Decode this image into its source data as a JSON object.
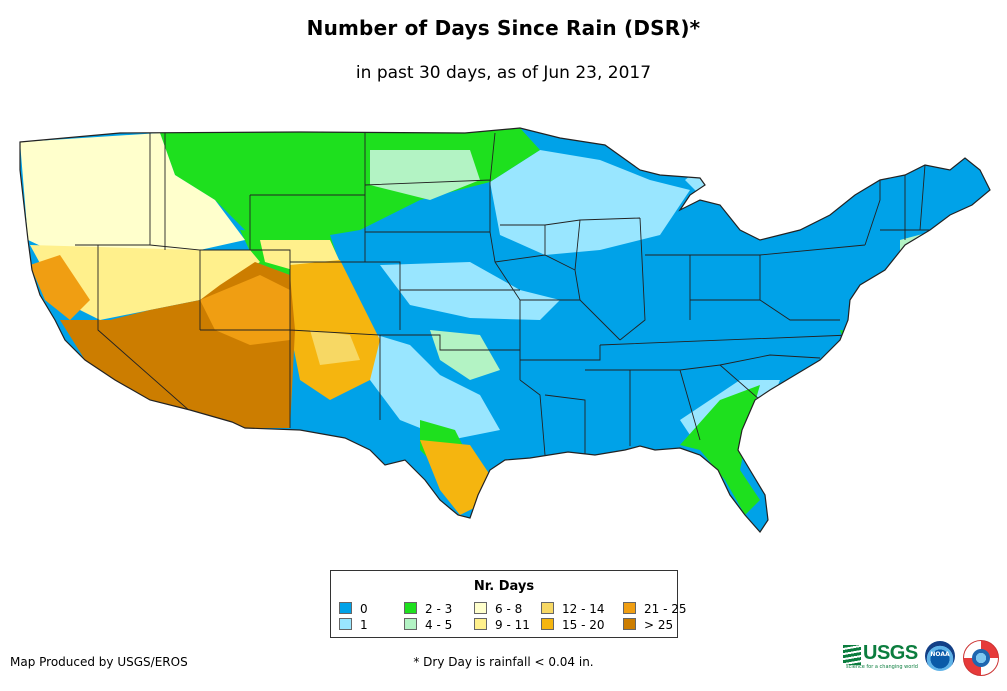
{
  "header": {
    "title": "Number of Days Since Rain (DSR)*",
    "subtitle": "in past 30 days, as of Jun 23, 2017"
  },
  "legend": {
    "title": "Nr. Days",
    "items": [
      {
        "label": "0",
        "color": "#00a2e8"
      },
      {
        "label": "1",
        "color": "#99e6ff"
      },
      {
        "label": "2 - 3",
        "color": "#1ee01e"
      },
      {
        "label": "4 - 5",
        "color": "#b3f3c4"
      },
      {
        "label": "6 - 8",
        "color": "#ffffcc"
      },
      {
        "label": "9 - 11",
        "color": "#fff08c"
      },
      {
        "label": "12 - 14",
        "color": "#f7d864"
      },
      {
        "label": "15 - 20",
        "color": "#f5b50f"
      },
      {
        "label": "21 - 25",
        "color": "#f09e12"
      },
      {
        "label": "> 25",
        "color": "#cc7d00"
      }
    ]
  },
  "footer": {
    "credit": "Map Produced by USGS/EROS",
    "footnote": "* Dry Day is rainfall < 0.04 in."
  },
  "logos": {
    "usgs_text": "USGS",
    "usgs_tagline": "science for a changing world",
    "noaa_text": "NOAA"
  }
}
